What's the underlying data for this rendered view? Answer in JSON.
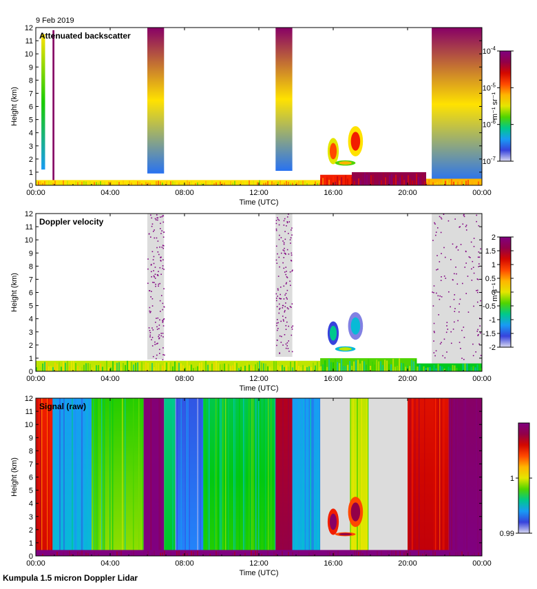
{
  "date": "9 Feb 2019",
  "footer": "Kumpula 1.5 micron Doppler Lidar",
  "colors": {
    "background": "#ffffff",
    "no_data": "#dcdcdc",
    "scale": [
      "#d8d8f0",
      "#3a3ad8",
      "#1e90ff",
      "#00c8c8",
      "#00c800",
      "#c8e600",
      "#ffe600",
      "#ff9600",
      "#ff2800",
      "#c80000",
      "#8c0050",
      "#800080"
    ]
  },
  "chart_data": [
    {
      "id": "backscatter",
      "type": "heatmap",
      "title": "Attenuated backscatter",
      "xlabel": "Time (UTC)",
      "ylabel": "Height (km)",
      "xlim": [
        0,
        24
      ],
      "ylim": [
        0,
        12
      ],
      "xticks": [
        "00:00",
        "04:00",
        "08:00",
        "12:00",
        "16:00",
        "20:00",
        "00:00"
      ],
      "yticks": [
        "0",
        "1",
        "2",
        "3",
        "4",
        "5",
        "6",
        "7",
        "8",
        "9",
        "10",
        "11",
        "12"
      ],
      "colorbar": {
        "label": "m⁻¹ sr⁻¹",
        "scale": "log",
        "range": [
          1e-07,
          0.0001
        ],
        "ticks": [
          {
            "value": 0,
            "base": "10",
            "exp": "-7"
          },
          {
            "value": 0.3333,
            "base": "10",
            "exp": "-6"
          },
          {
            "value": 0.6667,
            "base": "10",
            "exp": "-5"
          },
          {
            "value": 1,
            "base": "10",
            "exp": "-4"
          }
        ]
      },
      "columns": [
        {
          "t0": 0.3,
          "t1": 0.5,
          "h0": 1.2,
          "h1": 11.5,
          "v0": 0.2,
          "v1": 0.55
        },
        {
          "t0": 0.9,
          "t1": 1.0,
          "h0": 0,
          "h1": 11.8,
          "v0": 0.95,
          "v1": 0.95
        },
        {
          "t0": 6.0,
          "t1": 6.9,
          "h0": 0.9,
          "h1": 12,
          "v0": 0.15,
          "v1": 0.95
        },
        {
          "t0": 12.9,
          "t1": 13.8,
          "h0": 1.1,
          "h1": 12,
          "v0": 0.15,
          "v1": 0.95
        },
        {
          "t0": 21.3,
          "t1": 24.0,
          "h0": 0.3,
          "h1": 12,
          "v0": 0.15,
          "v1": 0.95
        }
      ],
      "clouds": [
        {
          "t0": 15.7,
          "t1": 16.3,
          "h0": 1.6,
          "h1": 3.6,
          "v": 0.7
        },
        {
          "t0": 16.8,
          "t1": 17.6,
          "h0": 2.2,
          "h1": 4.5,
          "v": 0.75
        },
        {
          "t0": 16.1,
          "t1": 17.2,
          "h0": 1.5,
          "h1": 1.9,
          "v": 0.6
        }
      ],
      "near_surface": [
        {
          "t0": 0,
          "t1": 15.3,
          "h1": 0.4,
          "v": 0.55
        },
        {
          "t0": 15.3,
          "t1": 17.0,
          "h1": 0.8,
          "v": 0.75
        },
        {
          "t0": 17.0,
          "t1": 21.0,
          "h1": 1.0,
          "v": 0.9
        },
        {
          "t0": 21.0,
          "t1": 24.0,
          "h1": 0.5,
          "v": 0.6
        }
      ]
    },
    {
      "id": "velocity",
      "type": "heatmap",
      "title": "Doppler velocity",
      "xlabel": "Time (UTC)",
      "ylabel": "Height (km)",
      "xlim": [
        0,
        24
      ],
      "ylim": [
        0,
        12
      ],
      "xticks": [
        "00:00",
        "04:00",
        "08:00",
        "12:00",
        "16:00",
        "20:00",
        "00:00"
      ],
      "yticks": [
        "0",
        "1",
        "2",
        "3",
        "4",
        "5",
        "6",
        "7",
        "8",
        "9",
        "10",
        "11",
        "12"
      ],
      "colorbar": {
        "label": "m s⁻¹",
        "scale": "linear",
        "range": [
          -2,
          2
        ],
        "ticks": [
          {
            "value": 0,
            "base": "-2",
            "exp": ""
          },
          {
            "value": 0.125,
            "base": "-1.5",
            "exp": ""
          },
          {
            "value": 0.25,
            "base": "-1",
            "exp": ""
          },
          {
            "value": 0.375,
            "base": "-0.5",
            "exp": ""
          },
          {
            "value": 0.5,
            "base": "0",
            "exp": ""
          },
          {
            "value": 0.625,
            "base": "0.5",
            "exp": ""
          },
          {
            "value": 0.75,
            "base": "1",
            "exp": ""
          },
          {
            "value": 0.875,
            "base": "1.5",
            "exp": ""
          },
          {
            "value": 1,
            "base": "2",
            "exp": ""
          }
        ]
      },
      "columns": [
        {
          "t0": 6.0,
          "t1": 6.9,
          "h0": 0.9,
          "h1": 12,
          "noise": true
        },
        {
          "t0": 12.9,
          "t1": 13.8,
          "h0": 1.1,
          "h1": 12,
          "noise": true
        },
        {
          "t0": 21.3,
          "t1": 24.0,
          "h0": 0.6,
          "h1": 12,
          "noise": true
        }
      ],
      "clouds": [
        {
          "t0": 15.7,
          "t1": 16.3,
          "h0": 2.0,
          "h1": 3.8,
          "v": 0.3
        },
        {
          "t0": 16.8,
          "t1": 17.6,
          "h0": 2.4,
          "h1": 4.5,
          "v": 0.25
        },
        {
          "t0": 16.1,
          "t1": 17.2,
          "h0": 1.5,
          "h1": 1.9,
          "v": 0.45
        }
      ],
      "near_surface": [
        {
          "t0": 0,
          "t1": 15.3,
          "h1": 0.8,
          "v": 0.45
        },
        {
          "t0": 15.3,
          "t1": 20.5,
          "h1": 1.0,
          "v": 0.4
        },
        {
          "t0": 20.5,
          "t1": 24.0,
          "h1": 0.6,
          "v": 0.35
        }
      ]
    },
    {
      "id": "signal",
      "type": "heatmap",
      "title": "Signal (raw)",
      "xlabel": "Time (UTC)",
      "ylabel": "Height (km)",
      "xlim": [
        0,
        24
      ],
      "ylim": [
        0,
        12
      ],
      "xticks": [
        "00:00",
        "04:00",
        "08:00",
        "12:00",
        "16:00",
        "20:00",
        "00:00"
      ],
      "yticks": [
        "0",
        "1",
        "2",
        "3",
        "4",
        "5",
        "6",
        "7",
        "8",
        "9",
        "10",
        "11",
        "12"
      ],
      "colorbar": {
        "label": "",
        "scale": "linear",
        "range": [
          0.99,
          1.01
        ],
        "ticks": [
          {
            "value": 0,
            "base": "0.99",
            "exp": ""
          },
          {
            "value": 0.5,
            "base": "1",
            "exp": ""
          }
        ]
      },
      "bands": [
        {
          "t0": 0.0,
          "t1": 0.9,
          "v": 0.75
        },
        {
          "t0": 0.9,
          "t1": 3.0,
          "v": 0.2
        },
        {
          "t0": 3.0,
          "t1": 5.8,
          "v": 0.38
        },
        {
          "t0": 5.8,
          "t1": 6.9,
          "v": 0.98
        },
        {
          "t0": 6.9,
          "t1": 7.5,
          "v": 0.3
        },
        {
          "t0": 7.5,
          "t1": 9.0,
          "v": 0.12
        },
        {
          "t0": 9.0,
          "t1": 12.9,
          "v": 0.33
        },
        {
          "t0": 12.9,
          "t1": 13.8,
          "v": 0.85
        },
        {
          "t0": 13.8,
          "t1": 15.3,
          "v": 0.2
        },
        {
          "t0": 15.3,
          "t1": 16.9,
          "v": -1
        },
        {
          "t0": 16.9,
          "t1": 17.9,
          "v": 0.45
        },
        {
          "t0": 17.9,
          "t1": 20.0,
          "v": -1
        },
        {
          "t0": 20.0,
          "t1": 22.2,
          "v": 0.78
        },
        {
          "t0": 22.2,
          "t1": 24.0,
          "v": 0.95
        }
      ],
      "clouds": [
        {
          "t0": 15.7,
          "t1": 16.3,
          "h0": 1.6,
          "h1": 3.6,
          "v": 0.95
        },
        {
          "t0": 16.8,
          "t1": 17.6,
          "h0": 2.2,
          "h1": 4.5,
          "v": 0.9
        },
        {
          "t0": 16.1,
          "t1": 17.2,
          "h0": 1.5,
          "h1": 1.8,
          "v": 0.9
        }
      ],
      "near_surface": [
        {
          "t0": 0,
          "t1": 24,
          "h1": 0.45,
          "v": 1.0
        }
      ]
    }
  ]
}
